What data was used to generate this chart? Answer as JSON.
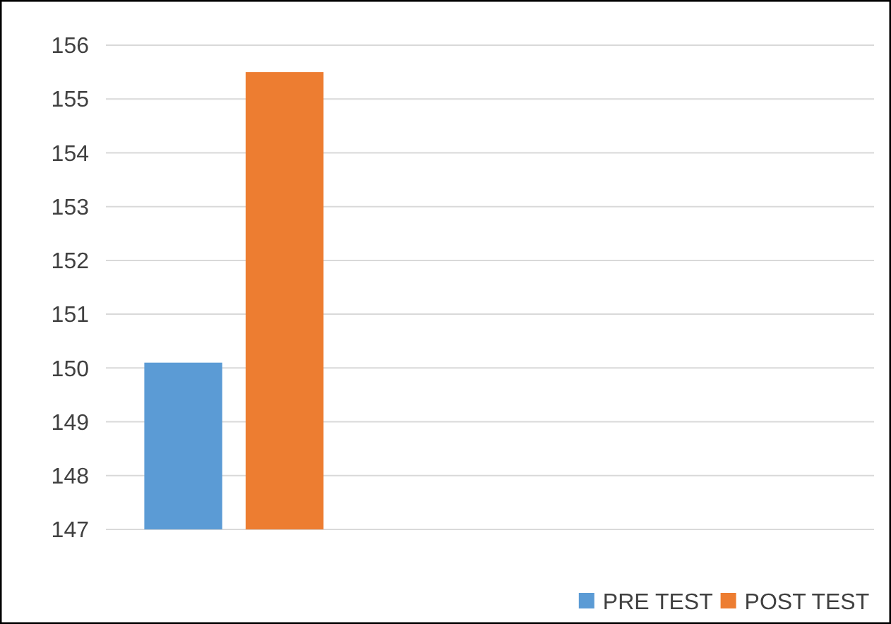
{
  "chart_data": {
    "type": "bar",
    "categories": [
      null,
      null,
      null
    ],
    "series": [
      {
        "name": "PRE TEST",
        "color": "#5b9bd5",
        "values": [
          150.1,
          null,
          null
        ]
      },
      {
        "name": "POST TEST",
        "color": "#ed7d31",
        "values": [
          155.5,
          null,
          null
        ]
      }
    ],
    "ylim": [
      147,
      156
    ],
    "yticks": [
      147,
      148,
      149,
      150,
      151,
      152,
      153,
      154,
      155,
      156
    ],
    "grid": "y",
    "legend": "bottom right"
  }
}
